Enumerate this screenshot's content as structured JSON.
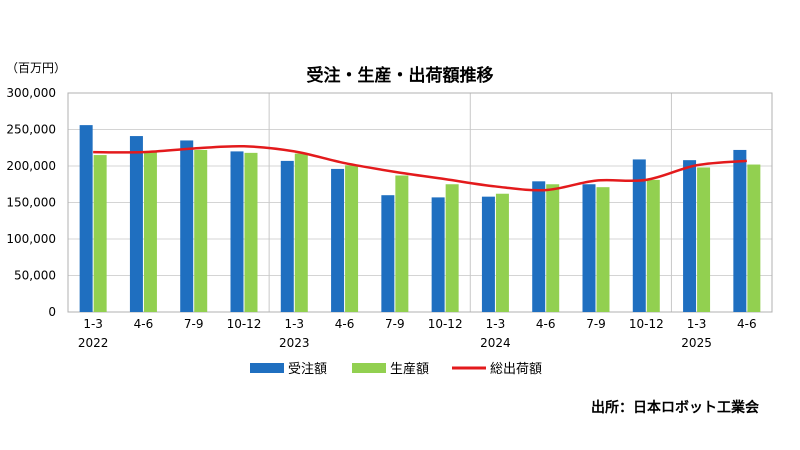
{
  "chart_data": {
    "type": "bar",
    "title": "受注・生産・出荷額推移",
    "unit_label": "（百万円）",
    "source": "出所：日本ロボット工業会",
    "categories": [
      "1-3",
      "4-6",
      "7-9",
      "10-12",
      "1-3",
      "4-6",
      "7-9",
      "10-12",
      "1-3",
      "4-6",
      "7-9",
      "10-12",
      "1-3",
      "4-6"
    ],
    "years": [
      {
        "label": "2022",
        "start_index": 0
      },
      {
        "label": "2023",
        "start_index": 4
      },
      {
        "label": "2024",
        "start_index": 8
      },
      {
        "label": "2025",
        "start_index": 12
      }
    ],
    "ylim": [
      0,
      300000
    ],
    "yticks": [
      {
        "value": 0,
        "label": "0"
      },
      {
        "value": 50000,
        "label": "50,000"
      },
      {
        "value": 100000,
        "label": "100,000"
      },
      {
        "value": 150000,
        "label": "150,000"
      },
      {
        "value": 200000,
        "label": "200,000"
      },
      {
        "value": 250000,
        "label": "250,000"
      },
      {
        "value": 300000,
        "label": "300,000"
      }
    ],
    "grid": true,
    "legend_position": "bottom",
    "series": [
      {
        "name": "受注額",
        "type": "bar",
        "color": "#1f6fc0",
        "values": [
          256000,
          241000,
          235000,
          220000,
          207000,
          196000,
          160000,
          157000,
          158000,
          179000,
          175000,
          209000,
          208000,
          222000
        ]
      },
      {
        "name": "生産額",
        "type": "bar",
        "color": "#92d050",
        "values": [
          215000,
          219000,
          222000,
          218000,
          217000,
          201000,
          187000,
          175000,
          162000,
          175000,
          171000,
          181000,
          198000,
          202000
        ]
      },
      {
        "name": "総出荷額",
        "type": "line",
        "color": "#e31a1c",
        "values": [
          219000,
          219000,
          224000,
          227000,
          220000,
          204000,
          192000,
          182000,
          172000,
          167000,
          180000,
          181000,
          201000,
          207000
        ]
      }
    ]
  }
}
